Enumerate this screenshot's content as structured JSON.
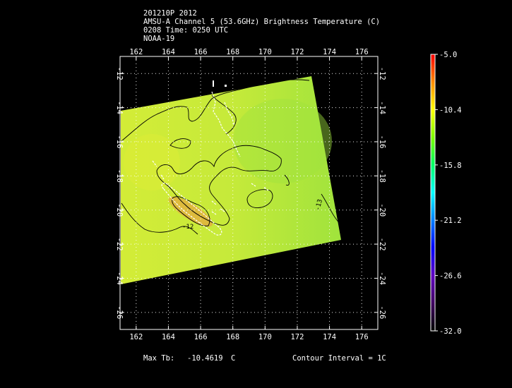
{
  "header": {
    "line1": "201210P 2012",
    "line2": "AMSU-A Channel 5 (53.6GHz) Brightness Temperature (C)",
    "line3": "0208 Time: 0250 UTC",
    "line4": "NOAA-19"
  },
  "axes": {
    "lon_ticks": [
      "162",
      "164",
      "166",
      "168",
      "170",
      "172",
      "174",
      "176"
    ],
    "lat_ticks": [
      "-12",
      "-14",
      "-16",
      "-18",
      "-20",
      "-22",
      "-24",
      "-26"
    ],
    "lon_range": [
      161,
      177
    ],
    "lat_range": [
      -11,
      -27
    ],
    "grid": "dotted"
  },
  "colorbar": {
    "labels": [
      "-5.0",
      "-10.4",
      "-15.8",
      "-21.2",
      "-26.6",
      "-32.0"
    ],
    "range": [
      -32.0,
      -5.0
    ],
    "colors": [
      "#ff0000",
      "#ff8c00",
      "#ffff00",
      "#7fff00",
      "#00ff66",
      "#00ffff",
      "#0080ff",
      "#0000ff",
      "#6000c0",
      "#400060",
      "#000000"
    ]
  },
  "contour_labels": [
    "-12",
    "-13"
  ],
  "footer": {
    "max_label": "Max Tb:",
    "max_value": "-10.4619",
    "max_unit": "C",
    "contour_label": "Contour Interval = 1C"
  },
  "colors": {
    "swath_green": "#a6e63a",
    "swath_yellow": "#d3ec37",
    "warm_core": "#e1b23e"
  }
}
